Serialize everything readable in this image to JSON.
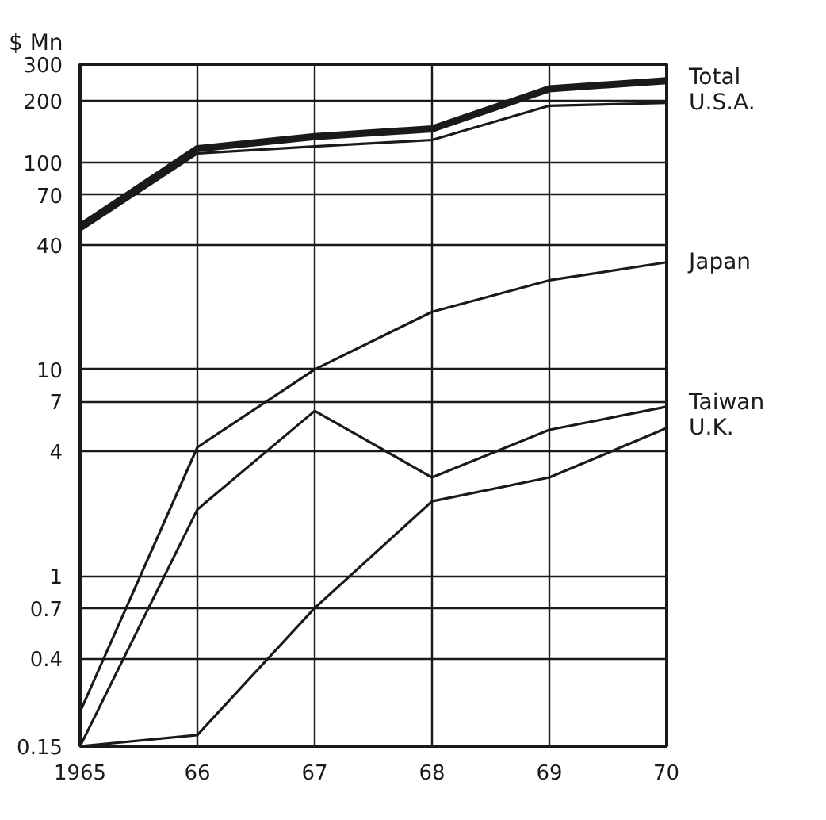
{
  "chart_data": {
    "type": "line",
    "ylabel": "$ Mn",
    "x": [
      1965,
      1966,
      1967,
      1968,
      1969,
      1970
    ],
    "xlim": [
      1965,
      1970
    ],
    "xticks": [
      1965,
      {
        "value": 1966,
        "label": "66"
      },
      {
        "value": 1967,
        "label": "67"
      },
      {
        "value": 1968,
        "label": "68"
      },
      {
        "value": 1969,
        "label": "69"
      },
      {
        "value": 1970,
        "label": "70"
      }
    ],
    "ylim": [
      0.15,
      300
    ],
    "yticks": [
      0.15,
      0.4,
      0.7,
      1,
      4,
      7,
      10,
      40,
      70,
      100,
      200,
      300
    ],
    "log": true,
    "grid": true,
    "legend": false,
    "marker": "none",
    "line_style": "solid",
    "series": [
      {
        "name": "Total",
        "color": "#1a1a1a",
        "values": [
          49,
          117,
          134,
          146,
          228,
          250
        ]
      },
      {
        "name": "U.S.A.",
        "color": "#1a1a1a",
        "values": [
          47,
          111,
          120,
          129,
          189,
          195
        ]
      },
      {
        "name": "Japan",
        "color": "#1a1a1a",
        "values": [
          0.22,
          4.2,
          10,
          19,
          27,
          33
        ]
      },
      {
        "name": "Taiwan",
        "color": "#1a1a1a",
        "values": [
          0.15,
          2.1,
          6.3,
          3.0,
          5.1,
          6.6
        ]
      },
      {
        "name": "U.K.",
        "color": "#1a1a1a",
        "values": [
          0.15,
          0.17,
          0.7,
          2.3,
          3.0,
          5.2
        ]
      }
    ]
  }
}
